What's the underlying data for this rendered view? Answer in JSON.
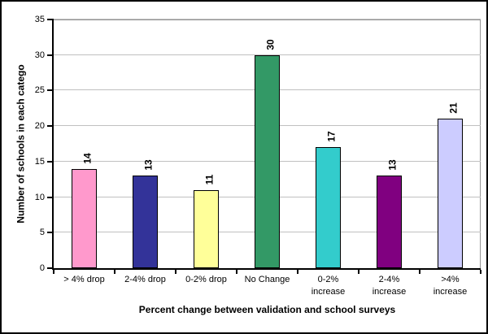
{
  "chart_data": {
    "type": "bar",
    "title": "",
    "categories": [
      "> 4% drop",
      "2-4% drop",
      "0-2% drop",
      "No Change",
      "0-2% increase",
      "2-4% increase",
      ">4% increase"
    ],
    "values": [
      14,
      13,
      11,
      30,
      17,
      13,
      21
    ],
    "bar_colors": [
      "#FF99CC",
      "#333399",
      "#FFFF99",
      "#339966",
      "#33CCCC",
      "#800080",
      "#CCCCFF"
    ],
    "xlabel": "Percent change between validation and school surveys",
    "ylabel": "Number of schools in each catego",
    "ylim": [
      0,
      35
    ],
    "yticks": [
      0,
      5,
      10,
      15,
      20,
      25,
      30,
      35
    ],
    "grid": true,
    "legend": false,
    "data_labels": {
      "show": true,
      "rotation": -90,
      "bold": true
    }
  },
  "colors": {
    "axis": "#000000",
    "gridline": "#C0C0C0",
    "plot_border": "#949494",
    "background": "#FFFFFF",
    "outer_border": "#000000"
  }
}
